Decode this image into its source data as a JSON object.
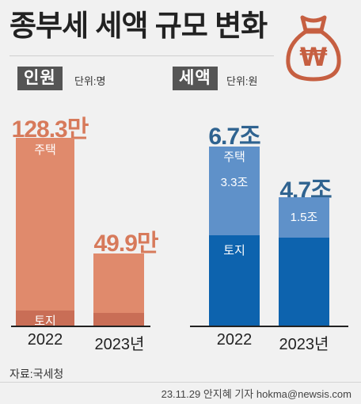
{
  "title": "종부세 세액 규모 변화",
  "icon": "money-bag-won-icon",
  "icon_symbol": "₩",
  "colors": {
    "people_top": "#e08a6c",
    "people_bottom": "#c96e56",
    "people_value": "#d77a5b",
    "tax_top": "#5f91c9",
    "tax_bottom": "#0d63ae",
    "tax_value": "#2f6390",
    "bag": "#c65f41"
  },
  "chart_data": [
    {
      "type": "bar",
      "stacked": true,
      "title": "인원",
      "unit_label": "단위:명",
      "categories": [
        "2022",
        "2023년"
      ],
      "value_labels": [
        "128.3만",
        "49.9만"
      ],
      "totals": [
        1283000,
        499000
      ],
      "series": [
        {
          "name": "주택",
          "values": [
            1246000,
            462000
          ]
        },
        {
          "name": "토지",
          "values": [
            37000,
            37000
          ]
        }
      ],
      "series_labels_shown": [
        {
          "name": "주택",
          "on_category": 0
        },
        {
          "name": "토지",
          "on_category": 0
        }
      ],
      "ylim": [
        0,
        1283000
      ]
    },
    {
      "type": "bar",
      "stacked": true,
      "title": "세액",
      "unit_label": "단위:원",
      "categories": [
        "2022",
        "2023년"
      ],
      "value_labels": [
        "6.7조",
        "4.7조"
      ],
      "totals": [
        6.7,
        4.7
      ],
      "series": [
        {
          "name": "주택",
          "values": [
            3.3,
            1.5
          ],
          "labels": [
            "3.3조",
            "1.5조"
          ]
        },
        {
          "name": "토지",
          "values": [
            3.4,
            3.2
          ]
        }
      ],
      "series_labels_shown": [
        {
          "name": "주택",
          "on_category": 0
        },
        {
          "name": "토지",
          "on_category": 0
        }
      ],
      "ylim": [
        0,
        6.7
      ]
    }
  ],
  "source": "자료:국세청",
  "credit": "23.11.29 안지혜 기자 hokma@newsis.com"
}
